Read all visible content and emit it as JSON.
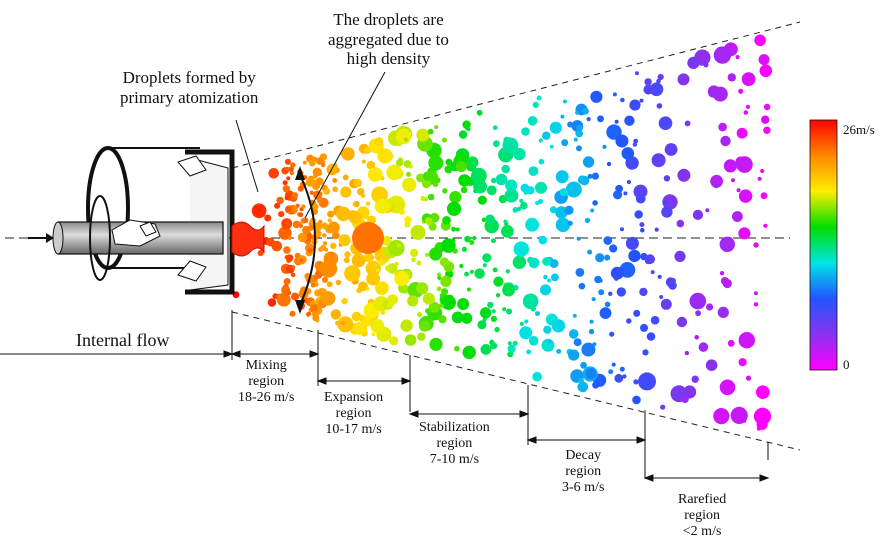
{
  "annotations": {
    "droplets_formed": [
      "Droplets formed by",
      "primary atomization"
    ],
    "droplets_aggregated": [
      "The droplets are",
      "aggregated due to",
      "high density"
    ]
  },
  "regions": [
    {
      "name": "Internal flow",
      "speed": ""
    },
    {
      "name": [
        "Mixing",
        "region"
      ],
      "speed": "18-26 m/s"
    },
    {
      "name": [
        "Expansion",
        "region"
      ],
      "speed": "10-17 m/s"
    },
    {
      "name": [
        "Stabilization",
        "region"
      ],
      "speed": "7-10 m/s"
    },
    {
      "name": [
        "Decay",
        "region"
      ],
      "speed": "3-6 m/s"
    },
    {
      "name": [
        "Rarefied",
        "region"
      ],
      "speed": "<2 m/s"
    }
  ],
  "colorbar": {
    "max_label": "26m/s",
    "min_label": "0",
    "colors": [
      "#ff0000",
      "#ff8800",
      "#ffee00",
      "#00dd00",
      "#00e5e5",
      "#2255ff",
      "#8833ee",
      "#ff00ff"
    ]
  }
}
